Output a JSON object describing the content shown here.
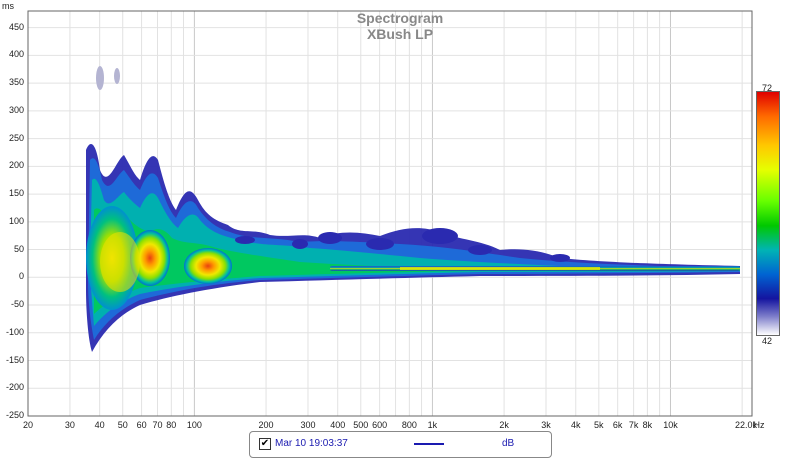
{
  "chart_data": {
    "type": "heatmap",
    "title": "Spectrogram",
    "subtitle": "XBush LP",
    "y_unit": "ms",
    "x_unit": "Hz",
    "x_scale": "log",
    "xlim": [
      20,
      22000
    ],
    "ylim": [
      -250,
      480
    ],
    "y_ticks": [
      "450",
      "400",
      "350",
      "300",
      "250",
      "200",
      "150",
      "100",
      "50",
      "0",
      "-50",
      "-100",
      "-150",
      "-200",
      "-250"
    ],
    "x_ticks": [
      "20",
      "30",
      "40",
      "50",
      "60",
      "70",
      "80",
      "100",
      "200",
      "300",
      "400",
      "500",
      "600",
      "800",
      "1k",
      "2k",
      "3k",
      "4k",
      "5k",
      "6k",
      "7k",
      "8k",
      "10k",
      "22.0k"
    ],
    "colorbar": {
      "max": "72",
      "min": "42",
      "unit": "dB"
    },
    "grid": true
  },
  "legend": {
    "checked": true,
    "checkbox_glyph": "✔",
    "series_label": "Mar 10 19:03:37",
    "units": "dB",
    "line_color": "#1a1ab0"
  }
}
